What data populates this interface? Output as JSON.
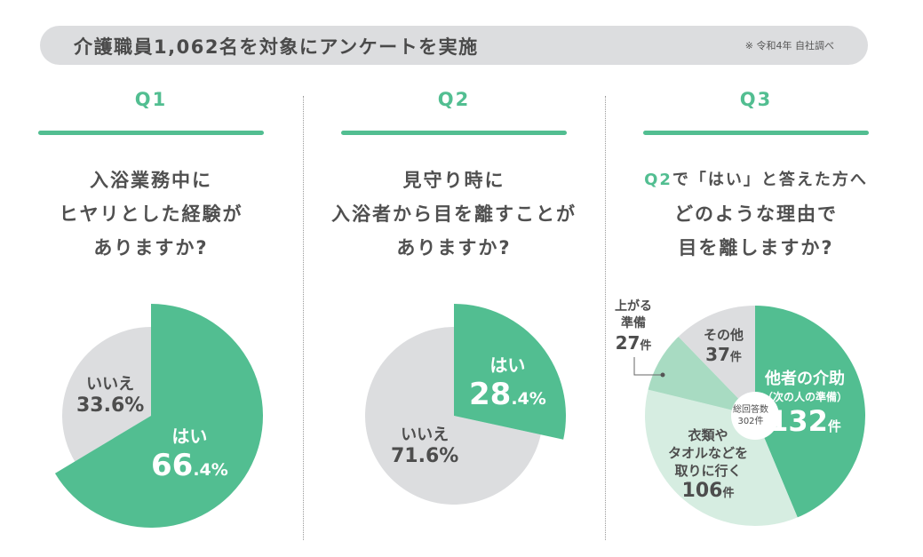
{
  "banner": {
    "title": "介護職員1,062名を対象にアンケートを実施",
    "note": "※ 令和4年 自社調べ"
  },
  "colors": {
    "accent": "#52be91",
    "gray": "#dcdddf",
    "mid_green": "#a8dbc2",
    "light_green": "#d6ede1",
    "text": "#4d4d4d"
  },
  "questions": [
    {
      "label": "Q1",
      "text_lines": [
        "入浴業務中に",
        "ヒヤリとした経験が",
        "ありますか?"
      ]
    },
    {
      "label": "Q2",
      "text_lines": [
        "見守り時に",
        "入浴者から目を離すことが",
        "ありますか?"
      ]
    },
    {
      "label": "Q3",
      "text_prefix": "Q2",
      "text_lines": [
        "で「はい」と答えた方へ",
        "どのような理由で",
        "目を離しますか?"
      ]
    }
  ],
  "chart_data": [
    {
      "type": "pie",
      "title": "Q1",
      "unit": "%",
      "slices": [
        {
          "label": "はい",
          "value": 66.4,
          "int": "66",
          "dec": ".4%",
          "color": "#52be91",
          "exploded": true
        },
        {
          "label": "いいえ",
          "value": 33.6,
          "text": "33.6%",
          "color": "#dcdddf",
          "exploded": false
        }
      ]
    },
    {
      "type": "pie",
      "title": "Q2",
      "unit": "%",
      "slices": [
        {
          "label": "はい",
          "value": 28.4,
          "int": "28",
          "dec": ".4%",
          "color": "#52be91",
          "exploded": true
        },
        {
          "label": "いいえ",
          "value": 71.6,
          "text": "71.6%",
          "color": "#dcdddf",
          "exploded": false
        }
      ]
    },
    {
      "type": "pie",
      "title": "Q3",
      "unit": "件",
      "total_label": "総回答数",
      "total_value": "302件",
      "slices": [
        {
          "label": "他者の介助",
          "sub": "（次の人の準備）",
          "value": 132,
          "color": "#52be91"
        },
        {
          "label_lines": [
            "衣類や",
            "タオルなどを",
            "取りに行く"
          ],
          "value": 106,
          "color": "#d6ede1"
        },
        {
          "label_lines": [
            "上がる",
            "準備"
          ],
          "value": 27,
          "color": "#a8dbc2"
        },
        {
          "label": "その他",
          "value": 37,
          "color": "#dcdddf"
        }
      ]
    }
  ]
}
